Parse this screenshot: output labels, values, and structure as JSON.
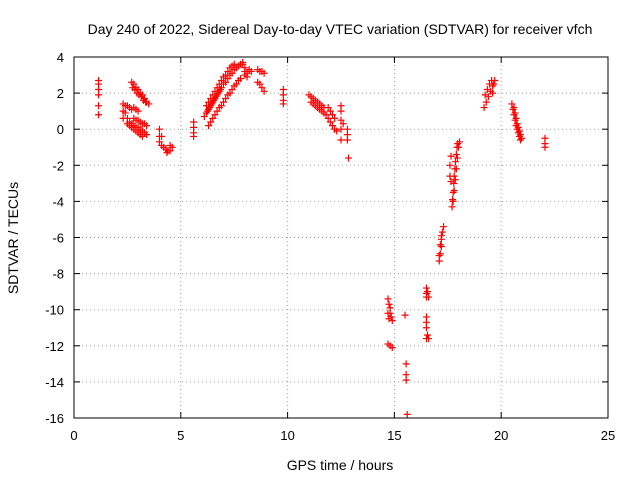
{
  "chart_data": {
    "type": "scatter",
    "title": "Day 240 of 2022, Sidereal Day-to-day VTEC variation (SDTVAR) for receiver vfch",
    "xlabel": "GPS time / hours",
    "ylabel": "SDTVAR / TECUs",
    "xlim": [
      0,
      25
    ],
    "ylim": [
      -16,
      4
    ],
    "xticks": [
      0,
      5,
      10,
      15,
      20,
      25
    ],
    "yticks": [
      -16,
      -14,
      -12,
      -10,
      -8,
      -6,
      -4,
      -2,
      0,
      2,
      4
    ],
    "grid": true,
    "marker": "+",
    "marker_color": "#ff0000",
    "series": [
      {
        "name": "SDTVAR",
        "points": [
          [
            1.15,
            2.7
          ],
          [
            1.15,
            2.5
          ],
          [
            1.15,
            2.2
          ],
          [
            1.15,
            1.9
          ],
          [
            1.15,
            1.3
          ],
          [
            1.15,
            0.8
          ],
          [
            2.3,
            1.4
          ],
          [
            2.3,
            1.0
          ],
          [
            2.3,
            0.6
          ],
          [
            2.4,
            1.3
          ],
          [
            2.5,
            1.3
          ],
          [
            2.6,
            1.2
          ],
          [
            2.7,
            1.1
          ],
          [
            2.8,
            1.2
          ],
          [
            2.9,
            1.1
          ],
          [
            3.0,
            1.0
          ],
          [
            2.4,
            0.9
          ],
          [
            2.5,
            0.6
          ],
          [
            2.6,
            0.4
          ],
          [
            2.7,
            0.3
          ],
          [
            2.8,
            0.2
          ],
          [
            2.9,
            0.1
          ],
          [
            3.0,
            0.1
          ],
          [
            3.1,
            0.0
          ],
          [
            3.2,
            -0.1
          ],
          [
            3.3,
            -0.2
          ],
          [
            3.4,
            -0.3
          ],
          [
            2.5,
            0.3
          ],
          [
            2.6,
            0.2
          ],
          [
            2.7,
            0.1
          ],
          [
            2.8,
            0.0
          ],
          [
            2.9,
            -0.1
          ],
          [
            3.0,
            -0.2
          ],
          [
            3.1,
            -0.3
          ],
          [
            3.2,
            -0.4
          ],
          [
            2.8,
            0.6
          ],
          [
            2.9,
            0.5
          ],
          [
            3.0,
            0.5
          ],
          [
            3.1,
            0.4
          ],
          [
            3.2,
            0.3
          ],
          [
            3.3,
            0.3
          ],
          [
            3.4,
            0.2
          ],
          [
            2.7,
            2.6
          ],
          [
            2.8,
            2.5
          ],
          [
            2.9,
            2.3
          ],
          [
            3.0,
            2.2
          ],
          [
            3.1,
            2.0
          ],
          [
            3.2,
            1.9
          ],
          [
            3.3,
            1.7
          ],
          [
            3.4,
            1.5
          ],
          [
            3.5,
            1.4
          ],
          [
            2.75,
            2.3
          ],
          [
            2.85,
            2.2
          ],
          [
            2.95,
            2.0
          ],
          [
            3.05,
            1.9
          ],
          [
            3.15,
            1.8
          ],
          [
            3.25,
            1.6
          ],
          [
            3.35,
            1.5
          ],
          [
            4.0,
            0.0
          ],
          [
            4.0,
            -0.4
          ],
          [
            4.0,
            -0.7
          ],
          [
            4.1,
            -0.4
          ],
          [
            4.1,
            -0.9
          ],
          [
            4.2,
            -1.0
          ],
          [
            4.3,
            -1.1
          ],
          [
            4.4,
            -1.2
          ],
          [
            4.5,
            -1.2
          ],
          [
            4.35,
            -1.3
          ],
          [
            4.5,
            -0.9
          ],
          [
            4.6,
            -1.0
          ],
          [
            5.6,
            0.4
          ],
          [
            5.6,
            0.1
          ],
          [
            5.6,
            -0.2
          ],
          [
            5.6,
            -0.4
          ],
          [
            6.1,
            0.7
          ],
          [
            6.2,
            0.9
          ],
          [
            6.3,
            1.1
          ],
          [
            6.4,
            1.3
          ],
          [
            6.5,
            1.5
          ],
          [
            6.6,
            1.7
          ],
          [
            6.7,
            1.9
          ],
          [
            6.8,
            2.1
          ],
          [
            6.9,
            2.3
          ],
          [
            7.0,
            2.5
          ],
          [
            7.1,
            2.6
          ],
          [
            7.2,
            2.8
          ],
          [
            7.3,
            3.0
          ],
          [
            7.4,
            3.1
          ],
          [
            7.5,
            3.3
          ],
          [
            7.6,
            3.4
          ],
          [
            7.7,
            3.5
          ],
          [
            7.8,
            3.6
          ],
          [
            7.9,
            3.7
          ],
          [
            6.2,
            1.3
          ],
          [
            6.3,
            1.5
          ],
          [
            6.4,
            1.7
          ],
          [
            6.5,
            1.9
          ],
          [
            6.6,
            2.1
          ],
          [
            6.7,
            2.3
          ],
          [
            6.8,
            2.5
          ],
          [
            6.9,
            2.7
          ],
          [
            7.0,
            2.9
          ],
          [
            7.1,
            3.0
          ],
          [
            7.2,
            3.2
          ],
          [
            7.3,
            3.4
          ],
          [
            7.4,
            3.5
          ],
          [
            7.5,
            3.6
          ],
          [
            6.3,
            0.2
          ],
          [
            6.4,
            0.4
          ],
          [
            6.5,
            0.6
          ],
          [
            6.6,
            0.8
          ],
          [
            6.7,
            1.0
          ],
          [
            6.8,
            1.2
          ],
          [
            6.9,
            1.3
          ],
          [
            7.0,
            1.5
          ],
          [
            7.1,
            1.7
          ],
          [
            7.2,
            1.9
          ],
          [
            7.3,
            2.0
          ],
          [
            7.4,
            2.2
          ],
          [
            7.5,
            2.4
          ],
          [
            7.6,
            2.5
          ],
          [
            7.7,
            2.7
          ],
          [
            7.8,
            2.8
          ],
          [
            6.25,
            1.0
          ],
          [
            6.35,
            1.2
          ],
          [
            6.45,
            1.4
          ],
          [
            6.55,
            1.6
          ],
          [
            6.65,
            1.8
          ],
          [
            6.75,
            2.0
          ],
          [
            6.85,
            2.2
          ],
          [
            7.9,
            3.6
          ],
          [
            8.0,
            3.4
          ],
          [
            8.0,
            3.2
          ],
          [
            8.0,
            3.0
          ],
          [
            8.1,
            3.1
          ],
          [
            8.2,
            3.3
          ],
          [
            8.3,
            3.2
          ],
          [
            8.1,
            2.9
          ],
          [
            8.6,
            3.3
          ],
          [
            8.7,
            3.2
          ],
          [
            8.8,
            3.2
          ],
          [
            8.9,
            3.1
          ],
          [
            8.6,
            2.6
          ],
          [
            8.7,
            2.5
          ],
          [
            8.8,
            2.3
          ],
          [
            8.9,
            2.1
          ],
          [
            9.8,
            2.2
          ],
          [
            9.8,
            1.9
          ],
          [
            9.8,
            1.6
          ],
          [
            9.8,
            1.4
          ],
          [
            11.0,
            1.9
          ],
          [
            11.1,
            1.8
          ],
          [
            11.2,
            1.7
          ],
          [
            11.3,
            1.6
          ],
          [
            11.4,
            1.5
          ],
          [
            11.5,
            1.4
          ],
          [
            11.6,
            1.3
          ],
          [
            11.7,
            1.2
          ],
          [
            11.1,
            1.5
          ],
          [
            11.2,
            1.4
          ],
          [
            11.3,
            1.3
          ],
          [
            11.4,
            1.2
          ],
          [
            11.5,
            1.1
          ],
          [
            11.6,
            1.0
          ],
          [
            11.7,
            0.9
          ],
          [
            11.8,
            0.8
          ],
          [
            11.9,
            0.6
          ],
          [
            12.0,
            0.4
          ],
          [
            12.1,
            0.2
          ],
          [
            12.2,
            0.0
          ],
          [
            12.3,
            -0.1
          ],
          [
            11.9,
            1.2
          ],
          [
            12.0,
            1.0
          ],
          [
            12.1,
            0.8
          ],
          [
            12.2,
            0.6
          ],
          [
            12.5,
            1.3
          ],
          [
            12.5,
            1.0
          ],
          [
            12.5,
            0.5
          ],
          [
            12.5,
            0.0
          ],
          [
            12.5,
            -0.6
          ],
          [
            12.6,
            0.3
          ],
          [
            12.8,
            0.0
          ],
          [
            12.8,
            -0.3
          ],
          [
            12.8,
            -0.6
          ],
          [
            12.85,
            -1.6
          ],
          [
            14.7,
            -9.4
          ],
          [
            14.75,
            -9.7
          ],
          [
            14.8,
            -9.9
          ],
          [
            14.8,
            -10.2
          ],
          [
            14.85,
            -10.4
          ],
          [
            14.9,
            -10.6
          ],
          [
            14.7,
            -10.2
          ],
          [
            14.75,
            -10.5
          ],
          [
            14.7,
            -11.9
          ],
          [
            14.8,
            -12.0
          ],
          [
            14.9,
            -12.1
          ],
          [
            15.5,
            -10.3
          ],
          [
            15.55,
            -13.0
          ],
          [
            15.55,
            -13.6
          ],
          [
            15.55,
            -13.9
          ],
          [
            15.6,
            -15.8
          ],
          [
            16.5,
            -8.8
          ],
          [
            16.5,
            -9.1
          ],
          [
            16.5,
            -9.3
          ],
          [
            16.55,
            -9.0
          ],
          [
            16.6,
            -9.3
          ],
          [
            16.5,
            -10.4
          ],
          [
            16.5,
            -10.7
          ],
          [
            16.5,
            -11.0
          ],
          [
            16.55,
            -11.4
          ],
          [
            16.6,
            -11.6
          ],
          [
            16.5,
            -11.6
          ],
          [
            17.1,
            -7.3
          ],
          [
            17.15,
            -6.9
          ],
          [
            17.2,
            -6.5
          ],
          [
            17.2,
            -6.1
          ],
          [
            17.25,
            -5.7
          ],
          [
            17.3,
            -5.4
          ],
          [
            17.1,
            -7.0
          ],
          [
            17.15,
            -6.4
          ],
          [
            17.2,
            -5.9
          ],
          [
            17.7,
            -4.3
          ],
          [
            17.72,
            -3.9
          ],
          [
            17.75,
            -3.5
          ],
          [
            17.78,
            -3.0
          ],
          [
            17.8,
            -2.6
          ],
          [
            17.83,
            -2.2
          ],
          [
            17.86,
            -1.8
          ],
          [
            17.9,
            -1.4
          ],
          [
            17.93,
            -1.0
          ],
          [
            17.96,
            -0.8
          ],
          [
            17.75,
            -4.0
          ],
          [
            17.8,
            -3.4
          ],
          [
            17.85,
            -2.8
          ],
          [
            17.9,
            -2.2
          ],
          [
            17.95,
            -1.6
          ],
          [
            18.0,
            -1.0
          ],
          [
            18.05,
            -0.7
          ],
          [
            17.6,
            -2.0
          ],
          [
            17.65,
            -1.5
          ],
          [
            17.6,
            -2.6
          ],
          [
            17.65,
            -2.9
          ],
          [
            19.2,
            1.2
          ],
          [
            19.3,
            1.5
          ],
          [
            19.4,
            1.8
          ],
          [
            19.5,
            2.1
          ],
          [
            19.6,
            2.4
          ],
          [
            19.7,
            2.7
          ],
          [
            19.25,
            1.9
          ],
          [
            19.35,
            2.2
          ],
          [
            19.45,
            2.5
          ],
          [
            19.55,
            2.7
          ],
          [
            19.6,
            2.0
          ],
          [
            19.65,
            2.5
          ],
          [
            20.5,
            1.4
          ],
          [
            20.55,
            1.1
          ],
          [
            20.6,
            0.8
          ],
          [
            20.65,
            0.5
          ],
          [
            20.7,
            0.2
          ],
          [
            20.75,
            0.0
          ],
          [
            20.8,
            -0.2
          ],
          [
            20.85,
            -0.4
          ],
          [
            20.9,
            -0.6
          ],
          [
            20.6,
            1.2
          ],
          [
            20.65,
            0.9
          ],
          [
            20.7,
            0.6
          ],
          [
            20.75,
            0.3
          ],
          [
            20.8,
            0.1
          ],
          [
            20.85,
            -0.1
          ],
          [
            20.9,
            -0.3
          ],
          [
            20.95,
            -0.5
          ],
          [
            22.05,
            -0.5
          ],
          [
            22.05,
            -0.8
          ],
          [
            22.05,
            -1.0
          ]
        ]
      }
    ]
  }
}
